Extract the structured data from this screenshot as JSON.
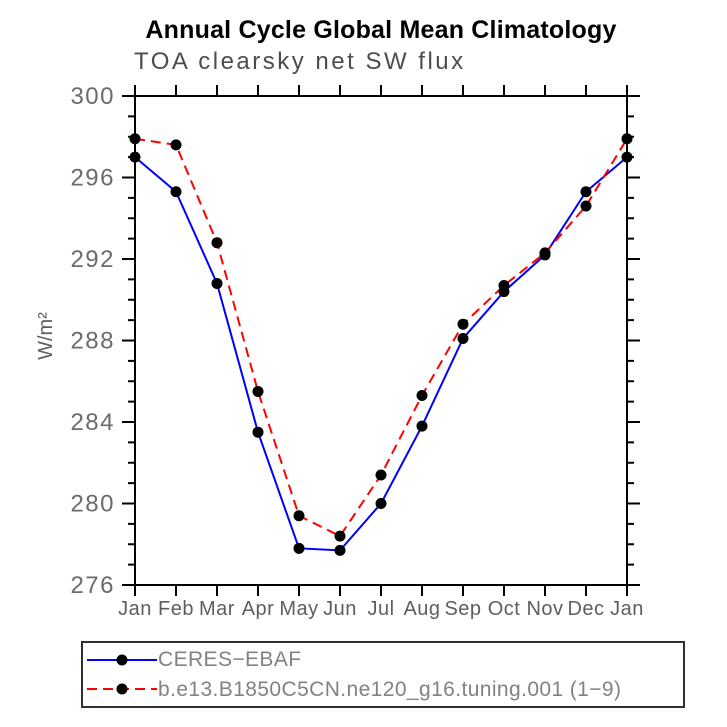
{
  "chart_data": {
    "type": "line",
    "title": "Annual Cycle Global Mean Climatology",
    "subtitle": "TOA clearsky net SW flux",
    "ylabel": "W/m²",
    "xlabel": "",
    "categories": [
      "Jan",
      "Feb",
      "Mar",
      "Apr",
      "May",
      "Jun",
      "Jul",
      "Aug",
      "Sep",
      "Oct",
      "Nov",
      "Dec",
      "Jan"
    ],
    "ylim": [
      276,
      300
    ],
    "ytick_major_step": 4,
    "ytick_minor_step": 1,
    "ytick_major_labels": [
      "276",
      "280",
      "284",
      "288",
      "292",
      "296",
      "300"
    ],
    "grid": false,
    "legend_position": "bottom-left-box",
    "series": [
      {
        "name": "CERES−EBAF",
        "color": "#0000ff",
        "line_style": "solid",
        "marker": "circle",
        "marker_color": "#000000",
        "values": [
          297.0,
          295.3,
          290.8,
          283.5,
          277.8,
          277.7,
          280.0,
          283.8,
          288.1,
          290.4,
          292.2,
          295.3,
          297.0
        ]
      },
      {
        "name": "b.e13.B1850C5CN.ne120_g16.tuning.001 (1−9)",
        "color": "#ff0000",
        "line_style": "dashed",
        "marker": "circle",
        "marker_color": "#000000",
        "values": [
          297.9,
          297.6,
          292.8,
          285.5,
          279.4,
          278.4,
          281.4,
          285.3,
          288.8,
          290.7,
          292.3,
          294.6,
          297.9
        ]
      }
    ],
    "axis_color": "#000000",
    "tick_label_color": "#6b6b6b",
    "month_label_color": "#5e5e5e"
  }
}
